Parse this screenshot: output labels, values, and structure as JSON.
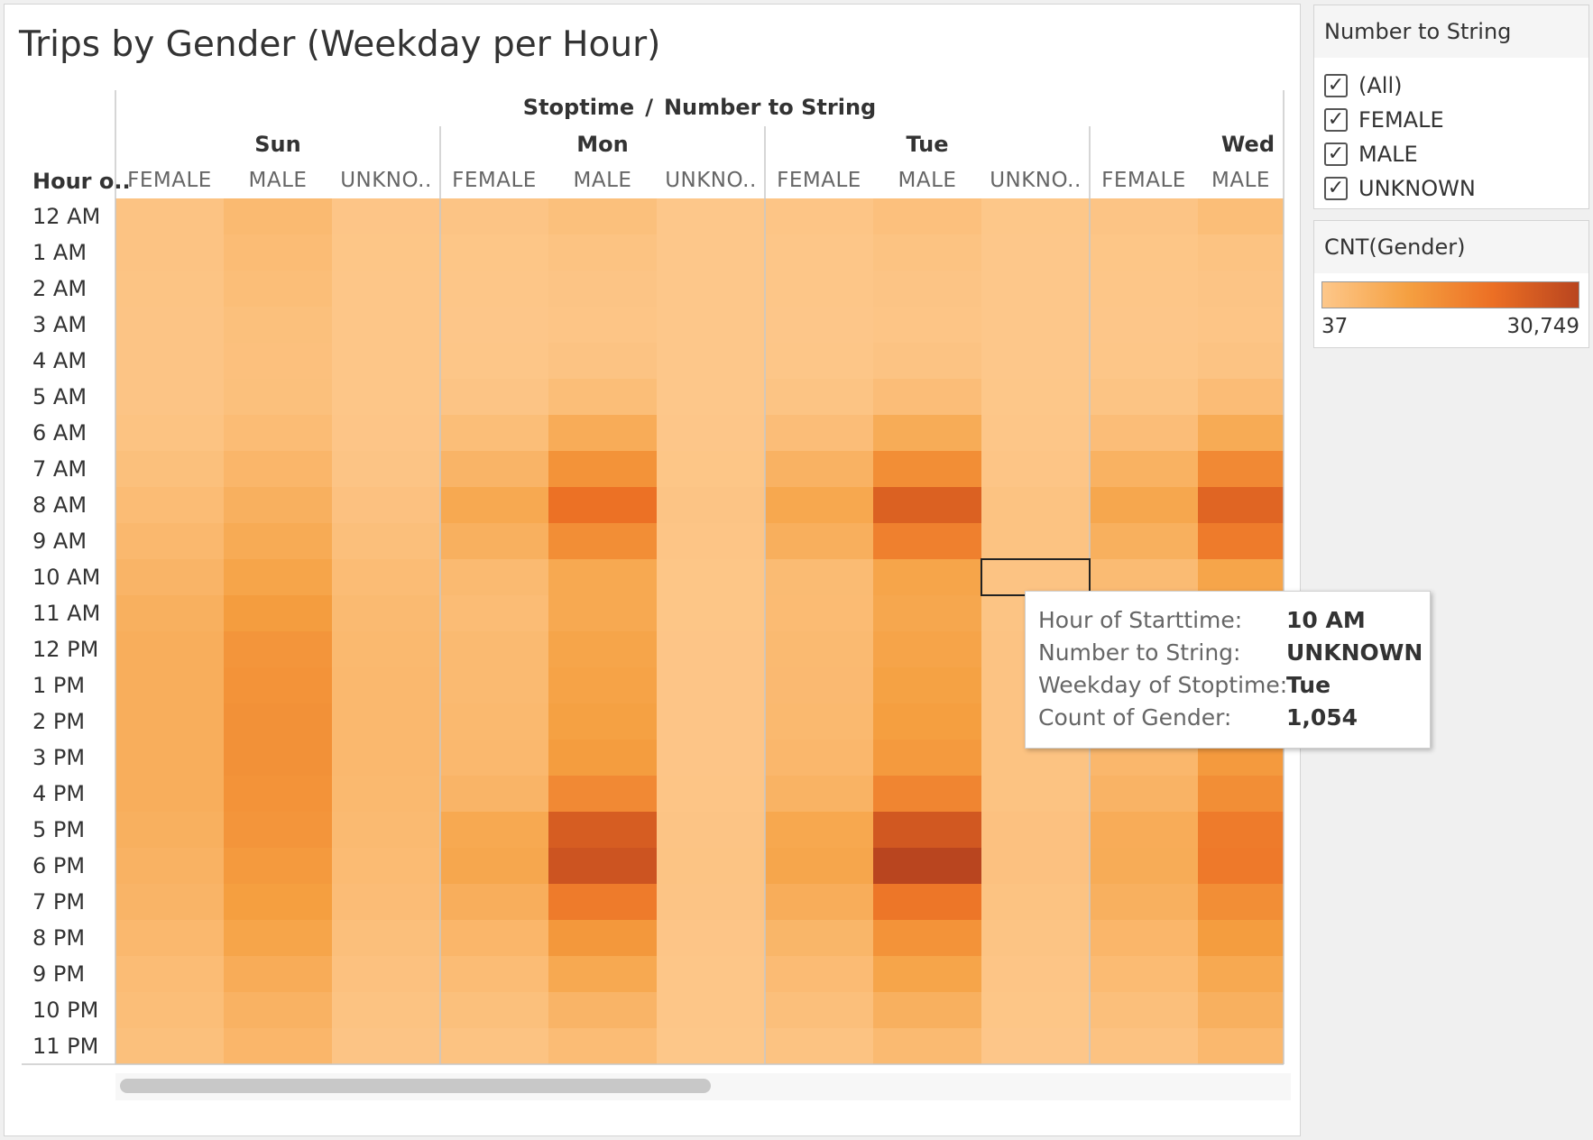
{
  "filter": {
    "title": "Number to String",
    "items": [
      {
        "label": "(All)",
        "checked": true
      },
      {
        "label": "FEMALE",
        "checked": true
      },
      {
        "label": "MALE",
        "checked": true
      },
      {
        "label": "UNKNOWN",
        "checked": true
      }
    ]
  },
  "legend": {
    "title": "CNT(Gender)",
    "min_label": "37",
    "max_label": "30,749",
    "colors": [
      "#fdc78a",
      "#f5a041",
      "#ec6f24",
      "#b9451f"
    ]
  },
  "tooltip": {
    "rows": [
      {
        "key": "Hour of Starttime:",
        "value": "10 AM"
      },
      {
        "key": "Number to String:",
        "value": "UNKNOWN"
      },
      {
        "key": "Weekday of Stoptime:",
        "value": "Tue"
      },
      {
        "key": "Count of Gender:",
        "value": "1,054"
      }
    ]
  },
  "chart_data": {
    "type": "heatmap",
    "title": "Trips by Gender (Weekday per Hour)",
    "column_axis_label": "Stoptime  /  Number to String",
    "row_axis_label": "Hour o..",
    "days": [
      "Sun",
      "Mon",
      "Tue",
      "Wed"
    ],
    "genders": [
      "FEMALE",
      "MALE",
      "UNKNOWN"
    ],
    "gender_display_labels": [
      "FEMALE",
      "MALE",
      "UNKNO.."
    ],
    "hours": [
      "12 AM",
      "1 AM",
      "2 AM",
      "3 AM",
      "4 AM",
      "5 AM",
      "6 AM",
      "7 AM",
      "8 AM",
      "9 AM",
      "10 AM",
      "11 AM",
      "12 PM",
      "1 PM",
      "2 PM",
      "3 PM",
      "4 PM",
      "5 PM",
      "6 PM",
      "7 PM",
      "8 PM",
      "9 PM",
      "10 PM",
      "11 PM"
    ],
    "value_range": [
      37,
      30749
    ],
    "selected_cell": {
      "day": "Tue",
      "gender": "UNKNOWN",
      "hour": "10 AM",
      "value": 1054
    },
    "columns": [
      {
        "day": "Sun",
        "gender": "FEMALE",
        "values": [
          1000,
          1000,
          900,
          800,
          700,
          800,
          1200,
          2000,
          3000,
          4000,
          5000,
          6000,
          6500,
          6500,
          6500,
          6500,
          6500,
          6000,
          5500,
          5000,
          4000,
          3000,
          2500,
          2000
        ]
      },
      {
        "day": "Sun",
        "gender": "MALE",
        "values": [
          3500,
          3000,
          2500,
          2000,
          1800,
          2000,
          3000,
          4500,
          6000,
          7500,
          9000,
          11000,
          12500,
          13000,
          13500,
          13500,
          13000,
          12500,
          11500,
          10500,
          9000,
          7000,
          5500,
          4500
        ]
      },
      {
        "day": "Sun",
        "gender": "UNKNOWN",
        "values": [
          500,
          400,
          300,
          250,
          250,
          300,
          500,
          800,
          1500,
          2200,
          3000,
          3500,
          3800,
          3900,
          4000,
          4000,
          3800,
          3500,
          3200,
          2800,
          2200,
          1600,
          1200,
          800
        ]
      },
      {
        "day": "Mon",
        "gender": "FEMALE",
        "values": [
          700,
          400,
          300,
          200,
          300,
          800,
          2500,
          5000,
          8000,
          6000,
          3500,
          3000,
          3500,
          3500,
          3800,
          4000,
          5000,
          8000,
          8500,
          6500,
          4500,
          3000,
          2000,
          1200
        ]
      },
      {
        "day": "Mon",
        "gender": "MALE",
        "values": [
          2000,
          1200,
          800,
          600,
          1000,
          2500,
          7000,
          13000,
          20000,
          14000,
          8000,
          8000,
          9000,
          9500,
          10000,
          11000,
          15000,
          25000,
          27000,
          18000,
          12000,
          8000,
          5000,
          3000
        ]
      },
      {
        "day": "Mon",
        "gender": "UNKNOWN",
        "values": [
          100,
          60,
          40,
          37,
          40,
          80,
          200,
          400,
          700,
          600,
          400,
          400,
          450,
          450,
          450,
          500,
          600,
          800,
          900,
          700,
          500,
          350,
          250,
          150
        ]
      },
      {
        "day": "Tue",
        "gender": "FEMALE",
        "values": [
          600,
          350,
          250,
          200,
          300,
          900,
          2600,
          5500,
          8300,
          6300,
          3300,
          3200,
          3500,
          3600,
          3800,
          4200,
          5300,
          8300,
          8800,
          6800,
          4600,
          3100,
          2100,
          1200
        ]
      },
      {
        "day": "Tue",
        "gender": "MALE",
        "values": [
          1800,
          1100,
          700,
          600,
          1000,
          2600,
          7200,
          14000,
          24000,
          17000,
          9000,
          8500,
          9200,
          9800,
          10500,
          11500,
          16000,
          26000,
          30749,
          19000,
          13000,
          9000,
          6000,
          3500
        ]
      },
      {
        "day": "Tue",
        "gender": "UNKNOWN",
        "values": [
          120,
          70,
          50,
          40,
          50,
          120,
          350,
          600,
          1200,
          1100,
          1054,
          900,
          1000,
          1000,
          1050,
          1100,
          1200,
          1500,
          1500,
          1200,
          900,
          650,
          400,
          200
        ]
      },
      {
        "day": "Wed",
        "gender": "FEMALE",
        "values": [
          700,
          400,
          300,
          200,
          300,
          900,
          2600,
          5600,
          8500,
          6200,
          3300,
          3200,
          3500,
          3600,
          3800,
          4200,
          5200,
          7000,
          7200,
          6000,
          4500,
          3200,
          2200,
          1300
        ]
      },
      {
        "day": "Wed",
        "gender": "MALE",
        "values": [
          2500,
          1200,
          800,
          600,
          1000,
          2800,
          7400,
          15000,
          23000,
          18000,
          9000,
          8500,
          9000,
          9500,
          10500,
          11500,
          14000,
          18000,
          18500,
          14000,
          11000,
          8000,
          6000,
          4000
        ]
      }
    ]
  }
}
